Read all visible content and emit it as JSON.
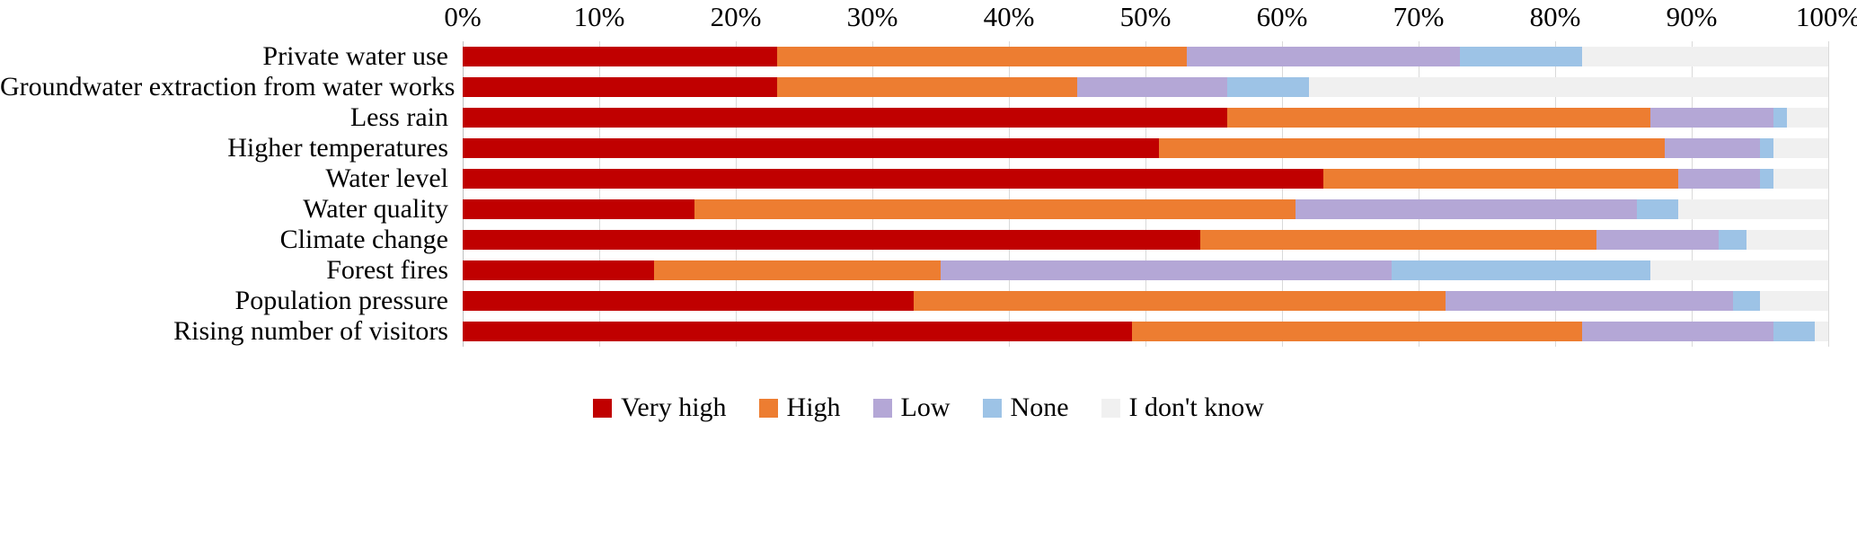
{
  "chart_data": {
    "type": "bar",
    "orientation": "horizontal",
    "stacked": true,
    "title": "",
    "xlabel": "",
    "ylabel": "",
    "xlim": [
      0,
      100
    ],
    "grid": true,
    "legend_position": "bottom",
    "x_ticks": [
      "0%",
      "10%",
      "20%",
      "30%",
      "40%",
      "50%",
      "60%",
      "70%",
      "80%",
      "90%",
      "100%"
    ],
    "categories": [
      "Private water use",
      "Groundwater extraction from water works",
      "Less rain",
      "Higher temperatures",
      "Water level",
      "Water quality",
      "Climate change",
      "Forest fires",
      "Population pressure",
      "Rising number of visitors"
    ],
    "series": [
      {
        "name": "Very high",
        "color": "#c00000",
        "values": [
          23,
          23,
          56,
          51,
          63,
          17,
          54,
          14,
          33,
          49
        ]
      },
      {
        "name": "High",
        "color": "#ed7d31",
        "values": [
          30,
          22,
          31,
          37,
          26,
          44,
          29,
          21,
          39,
          33
        ]
      },
      {
        "name": "Low",
        "color": "#b4a7d6",
        "values": [
          20,
          11,
          9,
          7,
          6,
          25,
          9,
          33,
          21,
          14
        ]
      },
      {
        "name": "None",
        "color": "#9dc3e6",
        "values": [
          9,
          6,
          1,
          1,
          1,
          3,
          2,
          19,
          2,
          3
        ]
      },
      {
        "name": "I don't know",
        "color": "#f0f0f0",
        "values": [
          18,
          38,
          3,
          4,
          4,
          11,
          6,
          13,
          5,
          1
        ]
      }
    ]
  },
  "colors": {
    "gridline": "#d9d9d9",
    "axis_line": "#bfbfbf",
    "text": "#000000",
    "background": "#ffffff"
  }
}
